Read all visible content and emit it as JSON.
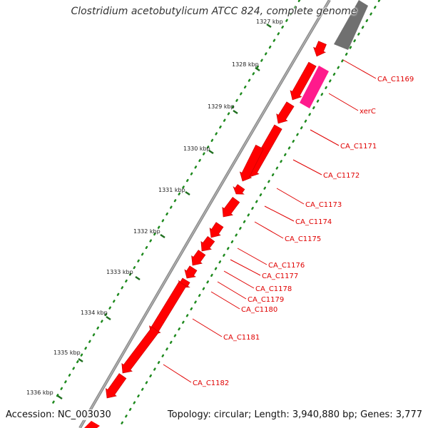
{
  "title": "Clostridium acetobutylicum ATCC 824, complete genome",
  "footer": {
    "accession": "Accession: NC_003030",
    "summary": "Topology: circular; Length: 3,940,880 bp; Genes: 3,777"
  },
  "colors": {
    "forward_gene": "#ff0000",
    "highlight_gene": "#ff1a8c",
    "reverse_feature": "#707070",
    "backbone": "#8a8a8a",
    "dots": "#1f8a1f",
    "label": "#e00000"
  },
  "kbp_labels": [
    "1327 kbp",
    "1328 kbp",
    "1329 kbp",
    "1330 kbp",
    "1331 kbp",
    "1332 kbp",
    "1333 kbp",
    "1334 kbp",
    "1335 kbp",
    "1336 kbp"
  ],
  "gene_labels": [
    "CA_C1169",
    "xerC",
    "CA_C1171",
    "CA_C1172",
    "CA_C1173",
    "CA_C1174",
    "CA_C1175",
    "CA_C1176",
    "CA_C1177",
    "CA_C1178",
    "CA_C1179",
    "CA_C1180",
    "CA_C1181",
    "CA_C1182"
  ]
}
